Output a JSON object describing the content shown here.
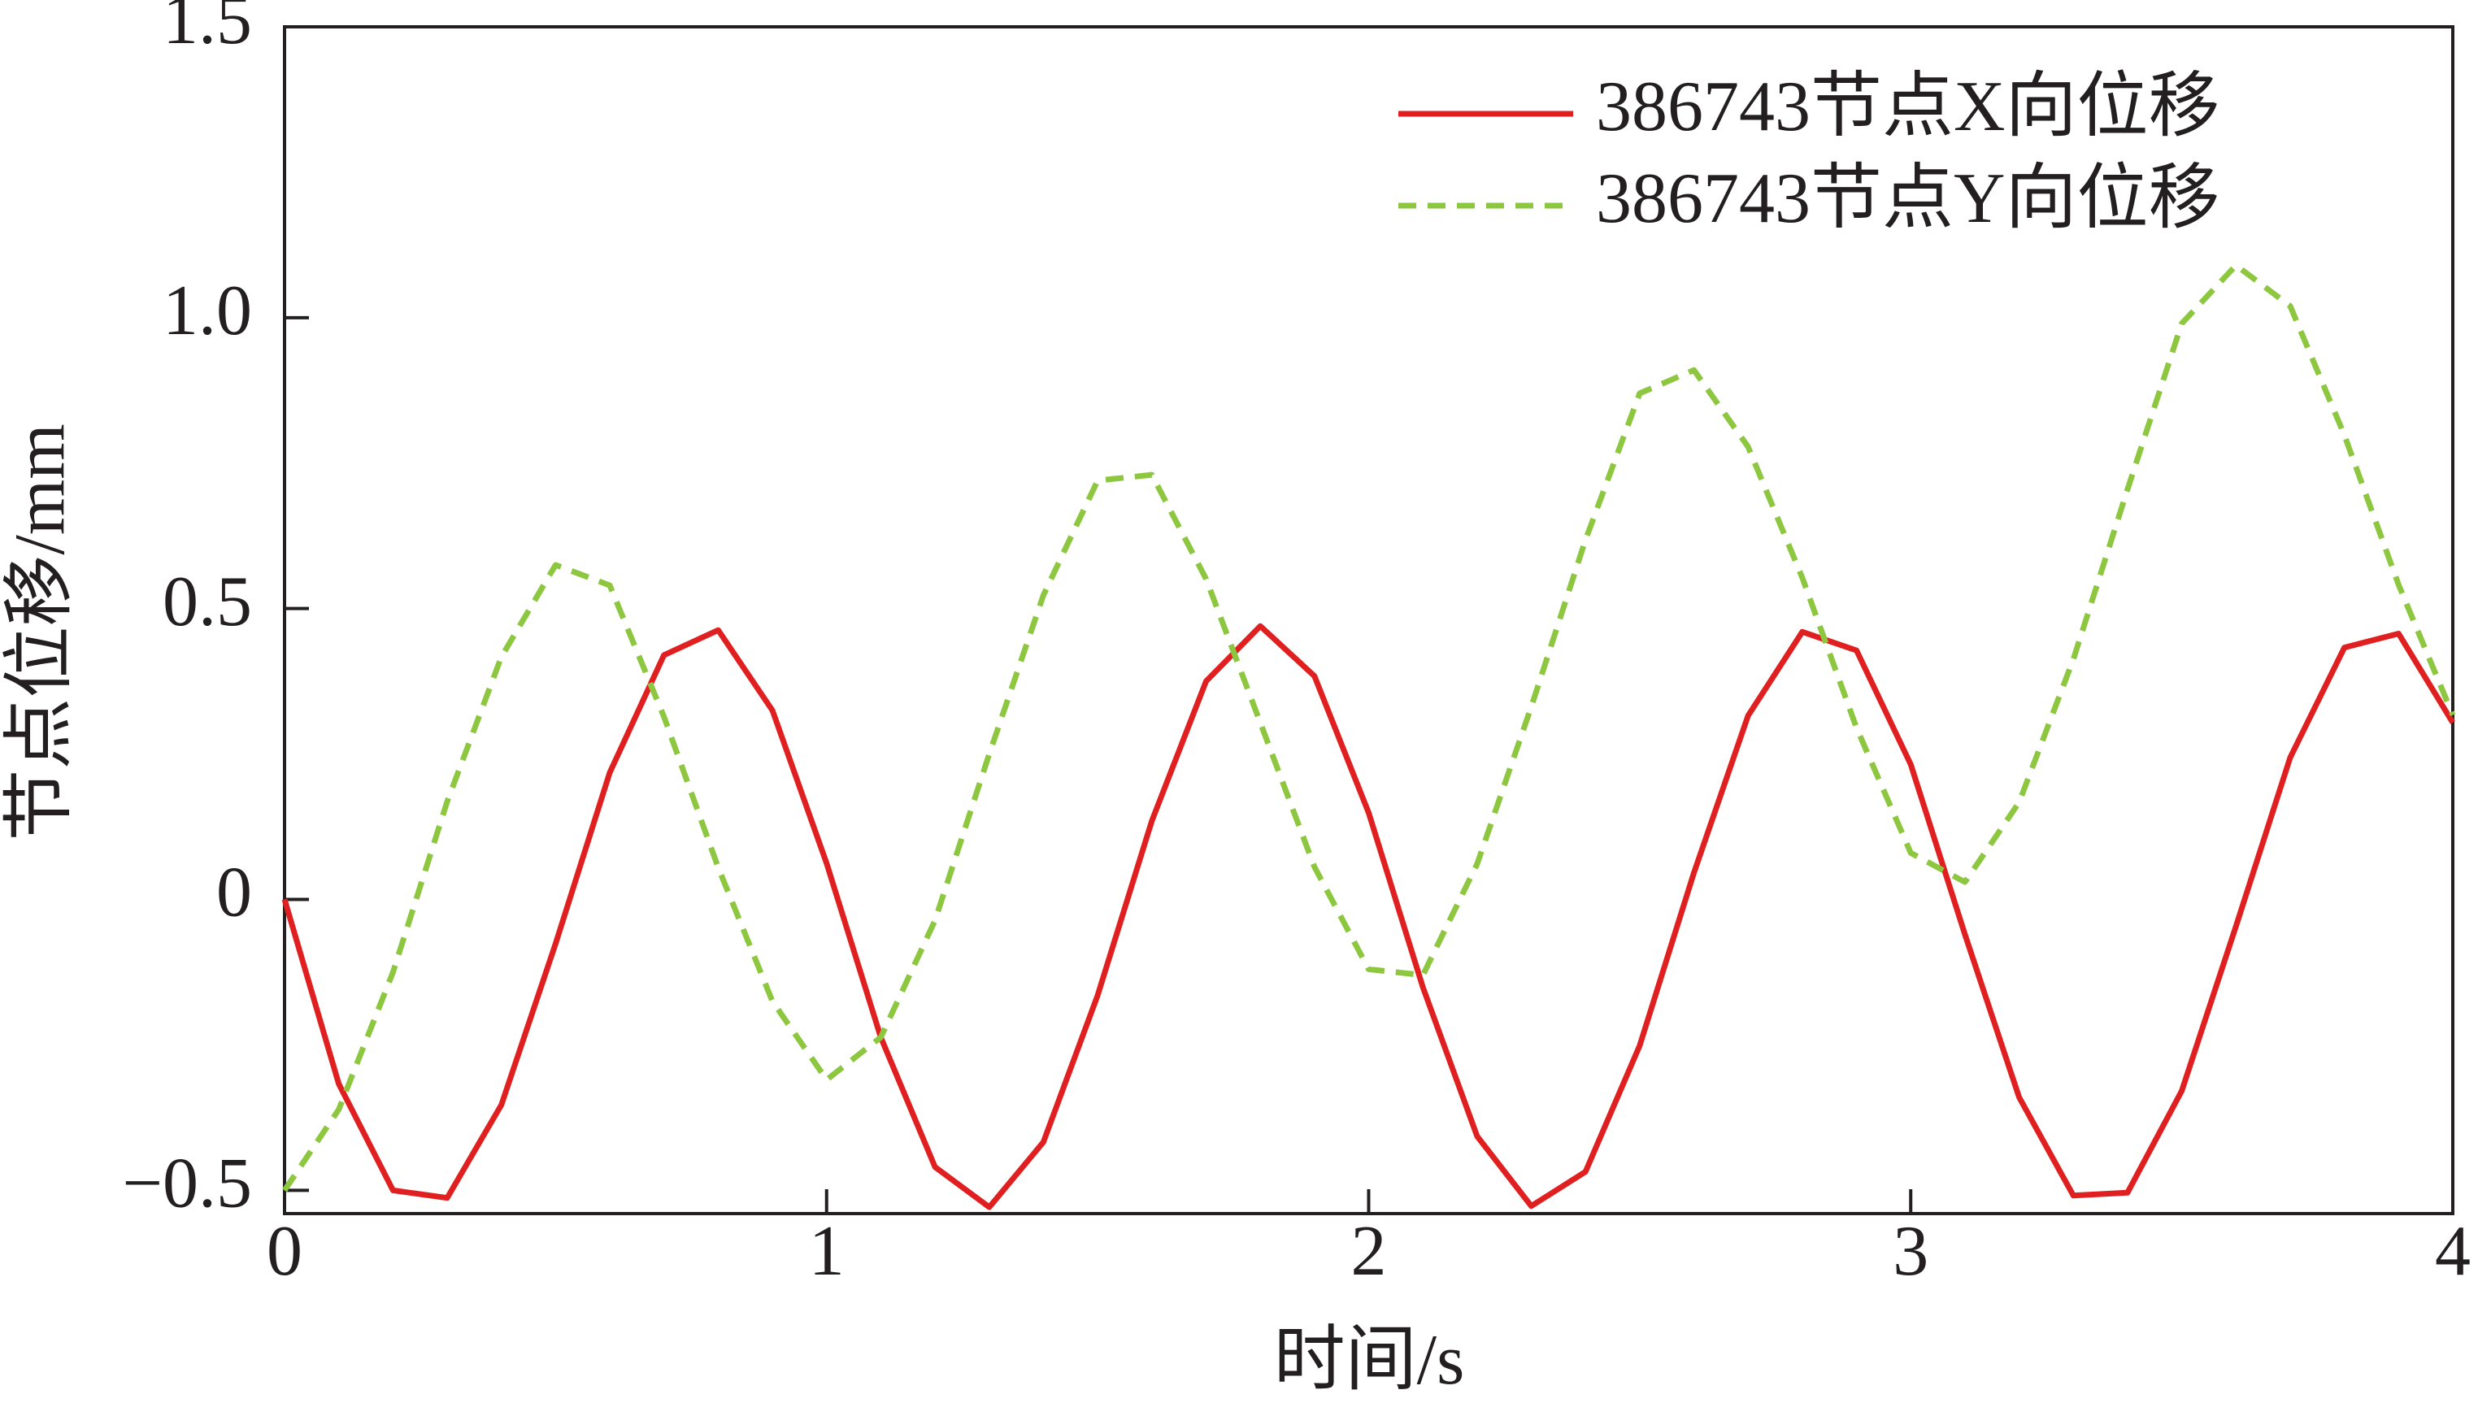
{
  "chart_data": {
    "type": "line",
    "xlabel": "时间/s",
    "ylabel": "节点位移/mm",
    "x": [
      0,
      0.1,
      0.2,
      0.3,
      0.4,
      0.5,
      0.6,
      0.7,
      0.8,
      0.9,
      1.0,
      1.1,
      1.2,
      1.3,
      1.4,
      1.5,
      1.6,
      1.7,
      1.8,
      1.9,
      2.0,
      2.1,
      2.2,
      2.3,
      2.4,
      2.5,
      2.6,
      2.7,
      2.8,
      2.9,
      3.0,
      3.1,
      3.2,
      3.3,
      3.4,
      3.5,
      3.6,
      3.7,
      3.8,
      3.9,
      4.0
    ],
    "series": [
      {
        "name": "386743节点X向位移",
        "color": "#e02020",
        "dash": false,
        "values": [
          0,
          -0.317,
          -0.5,
          -0.513,
          -0.353,
          -0.076,
          0.218,
          0.42,
          0.463,
          0.325,
          0.062,
          -0.237,
          -0.46,
          -0.529,
          -0.417,
          -0.165,
          0.135,
          0.375,
          0.47,
          0.384,
          0.149,
          -0.151,
          -0.407,
          -0.527,
          -0.468,
          -0.251,
          0.046,
          0.316,
          0.46,
          0.428,
          0.232,
          -0.06,
          -0.34,
          -0.509,
          -0.504,
          -0.329,
          -0.046,
          0.244,
          0.433,
          0.457,
          0.304
        ]
      },
      {
        "name": "386743节点Y向位移",
        "color": "#8dc63f",
        "dash": true,
        "values": [
          -0.5,
          -0.361,
          -0.125,
          0.168,
          0.417,
          0.575,
          0.54,
          0.314,
          0.055,
          -0.175,
          -0.31,
          -0.237,
          -0.036,
          0.25,
          0.523,
          0.72,
          0.73,
          0.551,
          0.304,
          0.056,
          -0.12,
          -0.13,
          0.061,
          0.331,
          0.618,
          0.87,
          0.91,
          0.778,
          0.553,
          0.295,
          0.08,
          0.03,
          0.167,
          0.413,
          0.705,
          0.99,
          1.09,
          1.02,
          0.798,
          0.541,
          0.317
        ]
      }
    ],
    "xlim": [
      0,
      4
    ],
    "xticks": [
      0,
      1,
      2,
      3,
      4
    ],
    "ylim": [
      -0.54,
      1.5
    ],
    "yticks": [
      {
        "value": -0.5,
        "label": "−0.5"
      },
      0,
      0.5,
      {
        "value": 1,
        "label": "1.0"
      },
      1.5
    ],
    "grid": false,
    "legend": "upper right"
  }
}
